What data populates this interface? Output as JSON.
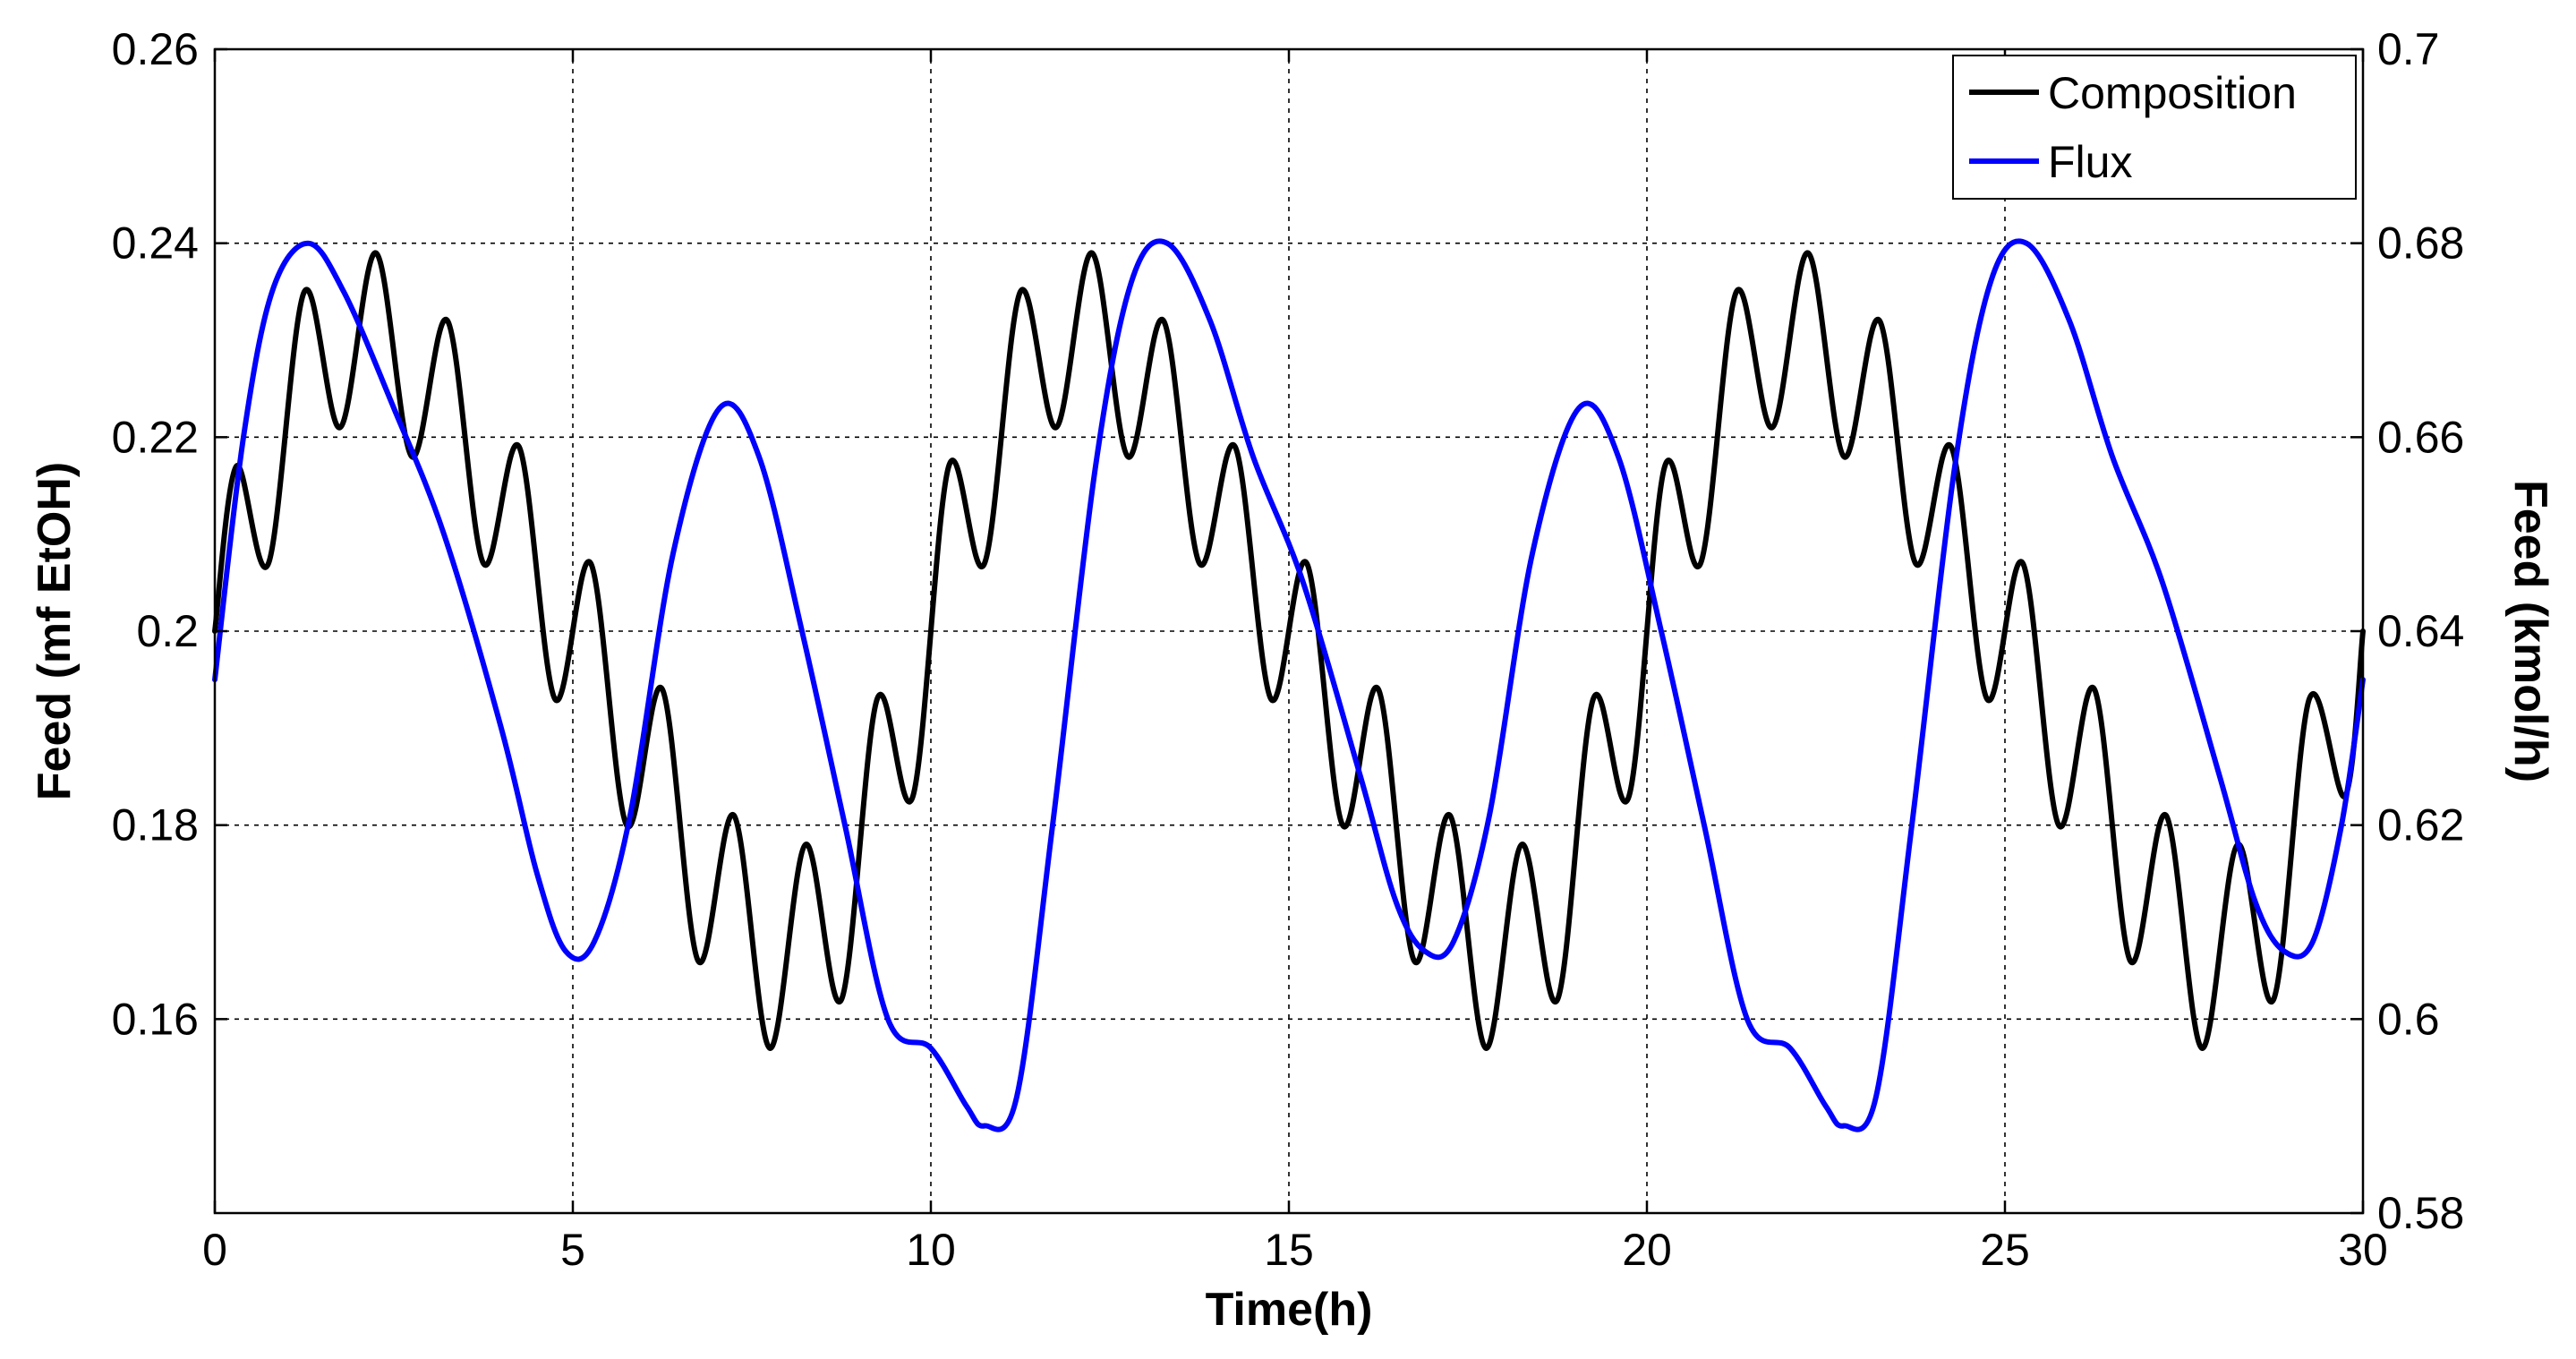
{
  "chart_data": {
    "type": "line",
    "xlabel": "Time(h)",
    "ylabel_left": "Feed (mf EtOH)",
    "ylabel_right": "Feed (kmol/h)",
    "xlim": [
      0,
      30
    ],
    "ylim_left": [
      0.14,
      0.26
    ],
    "ylim_right": [
      0.58,
      0.7
    ],
    "x_ticks": [
      "0",
      "5",
      "10",
      "15",
      "20",
      "25",
      "30"
    ],
    "y_ticks_left": [
      "0.16",
      "0.18",
      "0.2",
      "0.22",
      "0.24",
      "0.26"
    ],
    "y_ticks_right": [
      "0.58",
      "0.6",
      "0.62",
      "0.64",
      "0.66",
      "0.68",
      "0.7"
    ],
    "grid": true,
    "legend_position": "top-right",
    "series": [
      {
        "name": "Composition",
        "axis": "left",
        "color": "#000000",
        "x": [
          0,
          0.3,
          0.75,
          1.25,
          1.75,
          2.25,
          2.75,
          3.25,
          3.75,
          4.25,
          4.75,
          5.25,
          5.75,
          6.25,
          6.75,
          7.25,
          7.75,
          8.25,
          8.75,
          9.25,
          9.75,
          10.25,
          10.75,
          11.25,
          11.75,
          12.25,
          12.75,
          13.25,
          13.75,
          14.25,
          14.75,
          15.25,
          15.75,
          16.25,
          16.75,
          17.25,
          17.75,
          18.25,
          18.75,
          19.25,
          19.75,
          20.25,
          20.75,
          21.25,
          21.75,
          22.25,
          22.75,
          23.25,
          23.75,
          24.25,
          24.75,
          25.25,
          25.75,
          26.25,
          26.75,
          27.25,
          27.75,
          28.25,
          28.75,
          29.25,
          29.75,
          30
        ],
        "values": [
          0.2,
          0.217,
          0.207,
          0.235,
          0.221,
          0.239,
          0.218,
          0.232,
          0.207,
          0.219,
          0.193,
          0.207,
          0.18,
          0.194,
          0.166,
          0.181,
          0.157,
          0.178,
          0.162,
          0.193,
          0.183,
          0.217,
          0.207,
          0.235,
          0.221,
          0.239,
          0.218,
          0.232,
          0.207,
          0.219,
          0.193,
          0.207,
          0.18,
          0.194,
          0.166,
          0.181,
          0.157,
          0.178,
          0.162,
          0.193,
          0.183,
          0.217,
          0.207,
          0.235,
          0.221,
          0.239,
          0.218,
          0.232,
          0.207,
          0.219,
          0.193,
          0.207,
          0.18,
          0.194,
          0.166,
          0.181,
          0.157,
          0.178,
          0.162,
          0.193,
          0.183,
          0.2
        ]
      },
      {
        "name": "Flux",
        "axis": "right",
        "color": "#0000ff",
        "x": [
          0,
          0.4,
          0.8,
          1.3,
          1.8,
          2.5,
          3.2,
          4.0,
          4.5,
          4.9,
          5.3,
          5.8,
          6.4,
          7.05,
          7.6,
          8.2,
          8.8,
          9.4,
          10.0,
          10.5,
          10.75,
          11.2,
          11.7,
          12.3,
          12.8,
          13.3,
          13.9,
          14.5,
          15.2,
          16.0,
          16.5,
          16.9,
          17.3,
          17.8,
          18.4,
          19.05,
          19.6,
          20.2,
          20.8,
          21.4,
          22.0,
          22.5,
          22.75,
          23.2,
          23.7,
          24.3,
          24.8,
          25.3,
          25.9,
          26.5,
          27.2,
          28.0,
          28.5,
          28.9,
          29.3,
          29.7,
          30
        ],
        "values": [
          0.635,
          0.66,
          0.675,
          0.68,
          0.675,
          0.663,
          0.65,
          0.63,
          0.615,
          0.607,
          0.608,
          0.621,
          0.648,
          0.663,
          0.658,
          0.64,
          0.62,
          0.6,
          0.597,
          0.591,
          0.589,
          0.592,
          0.62,
          0.657,
          0.676,
          0.68,
          0.672,
          0.658,
          0.645,
          0.625,
          0.612,
          0.607,
          0.608,
          0.621,
          0.648,
          0.663,
          0.658,
          0.64,
          0.62,
          0.6,
          0.597,
          0.591,
          0.589,
          0.592,
          0.62,
          0.657,
          0.676,
          0.68,
          0.672,
          0.658,
          0.645,
          0.625,
          0.612,
          0.607,
          0.608,
          0.62,
          0.635
        ]
      }
    ]
  }
}
